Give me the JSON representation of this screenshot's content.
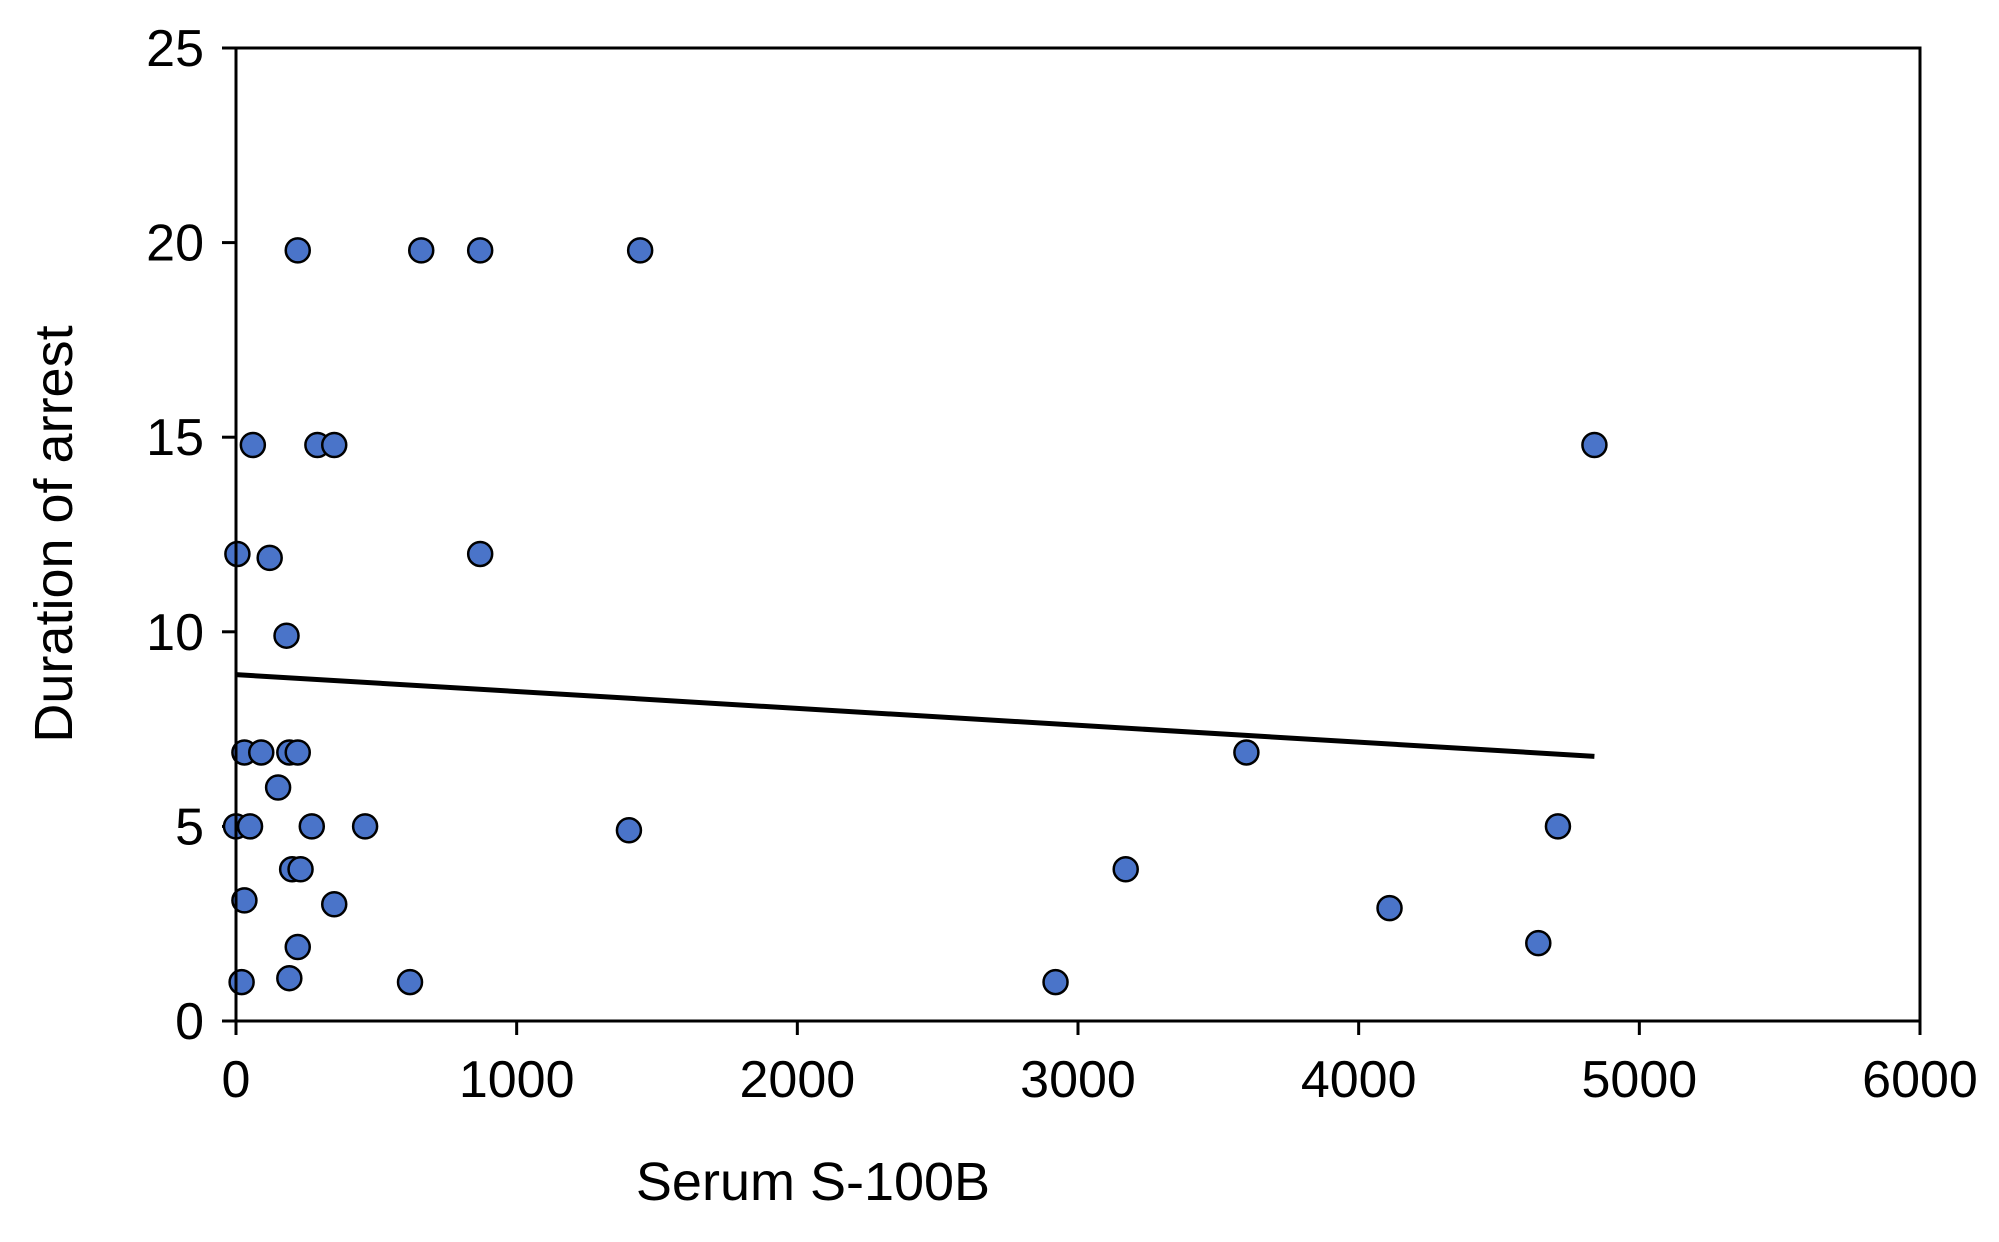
{
  "chart_data": {
    "type": "scatter",
    "title": "",
    "xlabel": "Serum S-100B",
    "ylabel": "Duration of arrest",
    "xlim": [
      0,
      6000
    ],
    "ylim": [
      0,
      25
    ],
    "xticks": [
      0,
      1000,
      2000,
      3000,
      4000,
      5000,
      6000
    ],
    "yticks": [
      0,
      5,
      10,
      15,
      20,
      25
    ],
    "xtick_labels": [
      "0",
      "1000",
      "2000",
      "3000",
      "4000",
      "5000",
      "6000"
    ],
    "ytick_labels": [
      "0",
      "5",
      "10",
      "15",
      "20",
      "25"
    ],
    "grid": false,
    "legend": "none",
    "marker_color": "#4a74c9",
    "marker_edge_color": "#000000",
    "line_color": "#000000",
    "points": [
      {
        "x": 220,
        "y": 19.8
      },
      {
        "x": 660,
        "y": 19.8
      },
      {
        "x": 870,
        "y": 19.8
      },
      {
        "x": 1440,
        "y": 19.8
      },
      {
        "x": 60,
        "y": 14.8
      },
      {
        "x": 290,
        "y": 14.8
      },
      {
        "x": 350,
        "y": 14.8
      },
      {
        "x": 4840,
        "y": 14.8
      },
      {
        "x": 5,
        "y": 12
      },
      {
        "x": 120,
        "y": 11.9
      },
      {
        "x": 870,
        "y": 12
      },
      {
        "x": 180,
        "y": 9.9
      },
      {
        "x": 30,
        "y": 6.9
      },
      {
        "x": 90,
        "y": 6.9
      },
      {
        "x": 190,
        "y": 6.9
      },
      {
        "x": 220,
        "y": 6.9
      },
      {
        "x": 3600,
        "y": 6.9
      },
      {
        "x": 150,
        "y": 6
      },
      {
        "x": 0,
        "y": 5
      },
      {
        "x": 50,
        "y": 5
      },
      {
        "x": 270,
        "y": 5
      },
      {
        "x": 460,
        "y": 5
      },
      {
        "x": 1400,
        "y": 4.9
      },
      {
        "x": 4710,
        "y": 5
      },
      {
        "x": 200,
        "y": 3.9
      },
      {
        "x": 230,
        "y": 3.9
      },
      {
        "x": 3170,
        "y": 3.9
      },
      {
        "x": 30,
        "y": 3.1
      },
      {
        "x": 350,
        "y": 3
      },
      {
        "x": 4110,
        "y": 2.9
      },
      {
        "x": 220,
        "y": 1.9
      },
      {
        "x": 4640,
        "y": 2
      },
      {
        "x": 20,
        "y": 1
      },
      {
        "x": 190,
        "y": 1.1
      },
      {
        "x": 620,
        "y": 1
      },
      {
        "x": 2920,
        "y": 1
      }
    ],
    "trendline": {
      "x": [
        0,
        4840
      ],
      "y": [
        8.9,
        6.8
      ]
    }
  }
}
